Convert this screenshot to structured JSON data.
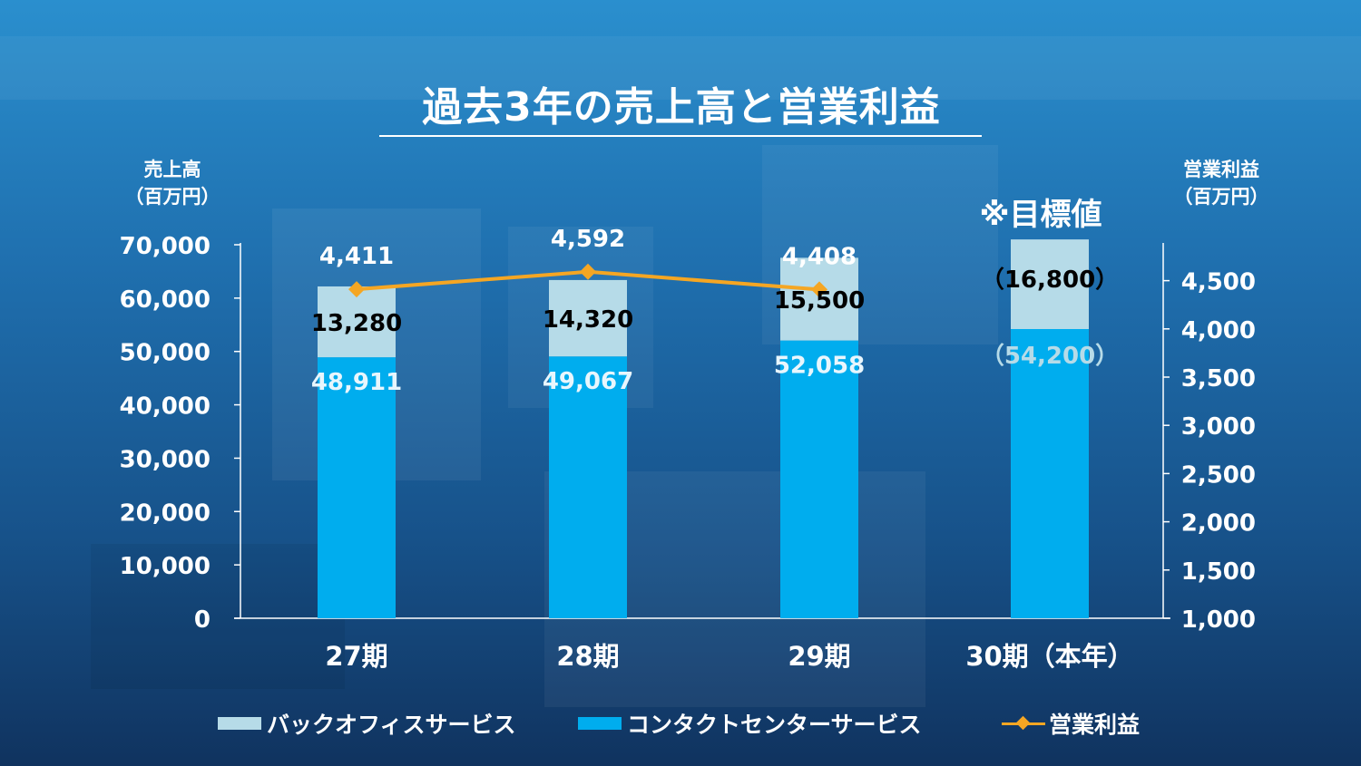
{
  "title": "過去3年の売上高と営業利益",
  "left_axis": {
    "line1": "売上高",
    "line2": "（百万円）"
  },
  "right_axis": {
    "line1": "営業利益",
    "line2": "（百万円）"
  },
  "target_note": "※目標値",
  "legend": {
    "back_office": "バックオフィスサービス",
    "contact_center": "コンタクトセンターサービス",
    "operating_profit": "営業利益"
  },
  "colors": {
    "back_office": "#b6dbe8",
    "contact_center": "#00adee",
    "operating_profit": "#f5a623"
  },
  "chart_data": {
    "type": "bar",
    "title": "過去3年の売上高と営業利益",
    "stacked": true,
    "categories": [
      "27期",
      "28期",
      "29期",
      "30期（本年）"
    ],
    "series": [
      {
        "name": "コンタクトセンターサービス",
        "axis": "left",
        "values": [
          48911,
          49067,
          52058,
          54200
        ],
        "labels": [
          "48,911",
          "49,067",
          "52,058",
          "（54,200）"
        ]
      },
      {
        "name": "バックオフィスサービス",
        "axis": "left",
        "values": [
          13280,
          14320,
          15500,
          16800
        ],
        "labels": [
          "13,280",
          "14,320",
          "15,500",
          "（16,800）"
        ]
      },
      {
        "name": "営業利益",
        "type": "line",
        "axis": "right",
        "values": [
          4411,
          4592,
          4408,
          null
        ],
        "labels": [
          "4,411",
          "4,592",
          "4,408",
          ""
        ]
      }
    ],
    "ylabel": "売上高（百万円）",
    "y2label": "営業利益（百万円）",
    "ylim": [
      0,
      70000
    ],
    "yticks": [
      "0",
      "10,000",
      "20,000",
      "30,000",
      "40,000",
      "50,000",
      "60,000",
      "70,000"
    ],
    "y2lim": [
      1000,
      4750
    ],
    "y2ticks": [
      "1,000",
      "1,500",
      "2,000",
      "2,500",
      "3,000",
      "3,500",
      "4,000",
      "4,500"
    ],
    "grid": false,
    "legend_position": "bottom"
  }
}
